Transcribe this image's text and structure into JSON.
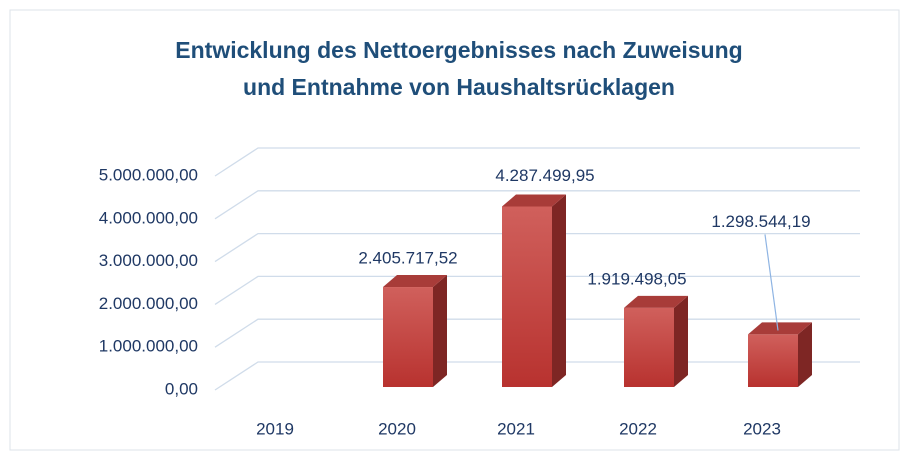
{
  "chart_data": {
    "type": "bar3d",
    "title": [
      "Entwicklung des Nettoergebnisses nach Zuweisung",
      "und Entnahme von Haushaltsrücklagen"
    ],
    "categories": [
      "2019",
      "2020",
      "2021",
      "2022",
      "2023"
    ],
    "values": [
      0,
      2405717.52,
      4287499.95,
      1919498.05,
      1298544.19
    ],
    "value_labels": [
      null,
      "2.405.717,52",
      "4.287.499,95",
      "1.919.498,05",
      "1.298.544,19"
    ],
    "color": "#c0504d",
    "ylim": [
      0,
      5000000
    ],
    "yticks": [
      {
        "value": 0,
        "label": "0,00"
      },
      {
        "value": 1000000,
        "label": "1.000.000,00"
      },
      {
        "value": 2000000,
        "label": "2.000.000,00"
      },
      {
        "value": 3000000,
        "label": "3.000.000,00"
      },
      {
        "value": 4000000,
        "label": "4.000.000,00"
      },
      {
        "value": 5000000,
        "label": "5.000.000,00"
      }
    ],
    "grid": true
  }
}
